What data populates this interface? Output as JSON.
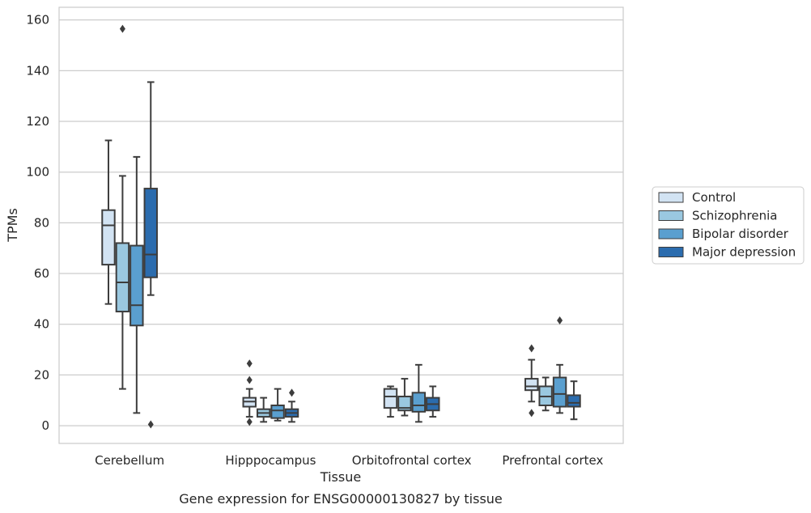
{
  "chart_data": {
    "type": "box",
    "xlabel": "Tissue",
    "ylabel": "TPMs",
    "caption": "Gene expression for ENSG00000130827 by tissue",
    "ylim": [
      -7,
      165
    ],
    "yticks": [
      0,
      20,
      40,
      60,
      80,
      100,
      120,
      140,
      160
    ],
    "grid": "horizontal",
    "legend_position": "right",
    "categories": [
      "Cerebellum",
      "Hipppocampus",
      "Orbitofrontal cortex",
      "Prefrontal cortex"
    ],
    "series": [
      {
        "name": "Control",
        "color": "#d2e3f3",
        "boxes": [
          {
            "whisker_low": 48,
            "q1": 63.5,
            "median": 79,
            "q3": 85,
            "whisker_high": 112.5,
            "outliers": []
          },
          {
            "whisker_low": 3.5,
            "q1": 7.5,
            "median": 9.5,
            "q3": 11,
            "whisker_high": 14.5,
            "outliers": [
              24.5,
              18,
              1.5
            ]
          },
          {
            "whisker_low": 3.5,
            "q1": 7,
            "median": 11.5,
            "q3": 14.5,
            "whisker_high": 15.5,
            "outliers": []
          },
          {
            "whisker_low": 9.5,
            "q1": 14,
            "median": 15.5,
            "q3": 18.5,
            "whisker_high": 26,
            "outliers": [
              30.5,
              5
            ]
          }
        ]
      },
      {
        "name": "Schizophrenia",
        "color": "#9ac8e0",
        "boxes": [
          {
            "whisker_low": 14.5,
            "q1": 45,
            "median": 56.5,
            "q3": 72,
            "whisker_high": 98.5,
            "outliers": [
              156.5
            ]
          },
          {
            "whisker_low": 1.5,
            "q1": 3.5,
            "median": 5,
            "q3": 6.5,
            "whisker_high": 11,
            "outliers": []
          },
          {
            "whisker_low": 4,
            "q1": 6,
            "median": 7,
            "q3": 11.5,
            "whisker_high": 18.5,
            "outliers": []
          },
          {
            "whisker_low": 6,
            "q1": 8,
            "median": 11.5,
            "q3": 15.5,
            "whisker_high": 19,
            "outliers": []
          }
        ]
      },
      {
        "name": "Bipolar disorder",
        "color": "#5a9fcf",
        "boxes": [
          {
            "whisker_low": 5,
            "q1": 39.5,
            "median": 47.5,
            "q3": 71,
            "whisker_high": 106,
            "outliers": []
          },
          {
            "whisker_low": 2,
            "q1": 3,
            "median": 6,
            "q3": 8,
            "whisker_high": 14.5,
            "outliers": []
          },
          {
            "whisker_low": 1.5,
            "q1": 5.5,
            "median": 8,
            "q3": 13,
            "whisker_high": 24,
            "outliers": []
          },
          {
            "whisker_low": 5,
            "q1": 7.5,
            "median": 12.5,
            "q3": 19,
            "whisker_high": 24,
            "outliers": [
              41.5
            ]
          }
        ]
      },
      {
        "name": "Major depression",
        "color": "#2b6cae",
        "boxes": [
          {
            "whisker_low": 51.5,
            "q1": 58.5,
            "median": 67.5,
            "q3": 93.5,
            "whisker_high": 135.5,
            "outliers": [
              0.5
            ]
          },
          {
            "whisker_low": 1.5,
            "q1": 3.5,
            "median": 5,
            "q3": 6.5,
            "whisker_high": 9.5,
            "outliers": [
              13
            ]
          },
          {
            "whisker_low": 3.5,
            "q1": 6,
            "median": 8.5,
            "q3": 11,
            "whisker_high": 15.5,
            "outliers": []
          },
          {
            "whisker_low": 2.5,
            "q1": 7.5,
            "median": 9,
            "q3": 12,
            "whisker_high": 17.5,
            "outliers": []
          }
        ]
      }
    ]
  }
}
